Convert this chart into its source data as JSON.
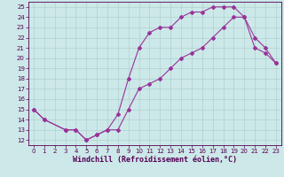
{
  "xlabel": "Windchill (Refroidissement éolien,°C)",
  "bg_color": "#cce8e8",
  "line_color": "#993399",
  "xlim": [
    -0.5,
    23.5
  ],
  "ylim": [
    11.5,
    25.5
  ],
  "xticks": [
    0,
    1,
    2,
    3,
    4,
    5,
    6,
    7,
    8,
    9,
    10,
    11,
    12,
    13,
    14,
    15,
    16,
    17,
    18,
    19,
    20,
    21,
    22,
    23
  ],
  "yticks": [
    12,
    13,
    14,
    15,
    16,
    17,
    18,
    19,
    20,
    21,
    22,
    23,
    24,
    25
  ],
  "line1_x": [
    0,
    1,
    3,
    4,
    5,
    6,
    7,
    8,
    9,
    10,
    11,
    12,
    13,
    14,
    15,
    16,
    17,
    18,
    19,
    20,
    21,
    22,
    23
  ],
  "line1_y": [
    15,
    14,
    13,
    13,
    12,
    12.5,
    13,
    14.5,
    18,
    21,
    22.5,
    23,
    23,
    24,
    24.5,
    24.5,
    25,
    25,
    25,
    24,
    22,
    21,
    19.5
  ],
  "line2_x": [
    0,
    1,
    3,
    4,
    5,
    6,
    7,
    8,
    9,
    10,
    11,
    12,
    13,
    14,
    15,
    16,
    17,
    18,
    19,
    20,
    21,
    22,
    23
  ],
  "line2_y": [
    15,
    14,
    13,
    13,
    12,
    12.5,
    13,
    13,
    15,
    17,
    17.5,
    18,
    19,
    20,
    20.5,
    21,
    22,
    23,
    24,
    24,
    21,
    20.5,
    19.5
  ],
  "marker": "D",
  "markersize": 2.0,
  "linewidth": 0.8,
  "tick_fontsize": 5.0,
  "xlabel_fontsize": 6.0
}
